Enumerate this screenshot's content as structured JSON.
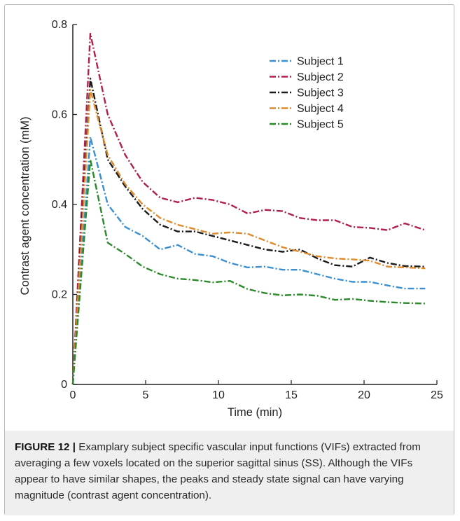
{
  "chart_data": {
    "type": "line",
    "xlabel": "Time (min)",
    "ylabel": "Contrast agent concentration (mM)",
    "xlim": [
      0,
      25
    ],
    "ylim": [
      0,
      0.8
    ],
    "xticks": [
      0,
      5,
      10,
      15,
      20,
      25
    ],
    "xtick_labels": [
      "0",
      "5",
      "10",
      "15",
      "20",
      "25"
    ],
    "yticks": [
      0,
      0.2,
      0.4,
      0.6,
      0.8
    ],
    "ytick_labels": [
      "0",
      "0.2",
      "0.4",
      "0.6",
      "0.8"
    ],
    "grid": false,
    "legend_position": "top-right",
    "line_style": "dash-dot",
    "series": [
      {
        "name": "Subject 1",
        "color": "#3a8fd0",
        "x": [
          0,
          1.2,
          2.4,
          3.6,
          4.8,
          6.0,
          7.2,
          8.4,
          9.6,
          10.8,
          12.0,
          13.2,
          14.4,
          15.6,
          16.8,
          18.0,
          19.2,
          20.4,
          21.6,
          22.8,
          24.2
        ],
        "y": [
          0,
          0.55,
          0.4,
          0.35,
          0.33,
          0.3,
          0.31,
          0.29,
          0.285,
          0.27,
          0.26,
          0.262,
          0.255,
          0.255,
          0.245,
          0.235,
          0.228,
          0.228,
          0.22,
          0.213,
          0.213
        ]
      },
      {
        "name": "Subject 2",
        "color": "#b0204a",
        "x": [
          0,
          1.2,
          2.4,
          3.6,
          4.8,
          6.0,
          7.2,
          8.4,
          9.6,
          10.8,
          12.0,
          13.2,
          14.4,
          15.6,
          16.8,
          18.0,
          19.2,
          20.4,
          21.6,
          22.8,
          24.2
        ],
        "y": [
          0,
          0.78,
          0.6,
          0.51,
          0.45,
          0.415,
          0.405,
          0.415,
          0.41,
          0.4,
          0.38,
          0.388,
          0.385,
          0.37,
          0.365,
          0.365,
          0.35,
          0.348,
          0.343,
          0.358,
          0.343
        ]
      },
      {
        "name": "Subject 3",
        "color": "#1a1a1a",
        "x": [
          0,
          1.2,
          2.4,
          3.6,
          4.8,
          6.0,
          7.2,
          8.4,
          9.6,
          10.8,
          12.0,
          13.2,
          14.4,
          15.6,
          16.8,
          18.0,
          19.2,
          20.4,
          21.6,
          22.8,
          24.2
        ],
        "y": [
          0,
          0.68,
          0.5,
          0.44,
          0.39,
          0.355,
          0.34,
          0.34,
          0.33,
          0.32,
          0.31,
          0.3,
          0.295,
          0.3,
          0.28,
          0.265,
          0.262,
          0.282,
          0.27,
          0.263,
          0.262
        ]
      },
      {
        "name": "Subject 4",
        "color": "#e08a2c",
        "x": [
          0,
          1.2,
          2.4,
          3.6,
          4.8,
          6.0,
          7.2,
          8.4,
          9.6,
          10.8,
          12.0,
          13.2,
          14.4,
          15.6,
          16.8,
          18.0,
          19.2,
          20.4,
          21.6,
          22.8,
          24.2
        ],
        "y": [
          0,
          0.655,
          0.51,
          0.445,
          0.4,
          0.37,
          0.355,
          0.345,
          0.335,
          0.338,
          0.335,
          0.32,
          0.305,
          0.295,
          0.285,
          0.28,
          0.278,
          0.275,
          0.262,
          0.26,
          0.258
        ]
      },
      {
        "name": "Subject 5",
        "color": "#2a8a2a",
        "x": [
          0,
          1.2,
          2.4,
          3.6,
          4.8,
          6.0,
          7.2,
          8.4,
          9.6,
          10.8,
          12.0,
          13.2,
          14.4,
          15.6,
          16.8,
          18.0,
          19.2,
          20.4,
          21.6,
          22.8,
          24.2
        ],
        "y": [
          0,
          0.5,
          0.315,
          0.29,
          0.262,
          0.245,
          0.235,
          0.232,
          0.227,
          0.23,
          0.212,
          0.203,
          0.198,
          0.2,
          0.197,
          0.188,
          0.19,
          0.186,
          0.183,
          0.181,
          0.18
        ]
      }
    ]
  },
  "caption": {
    "label": "FIGURE 12 |",
    "text": " Examplary subject specific vascular input functions (VIFs) extracted from averaging a few voxels located on the superior sagittal sinus (SS). Although the VIFs appear to have similar shapes, the peaks and steady state signal can have varying magnitude (contrast agent concentration)."
  }
}
